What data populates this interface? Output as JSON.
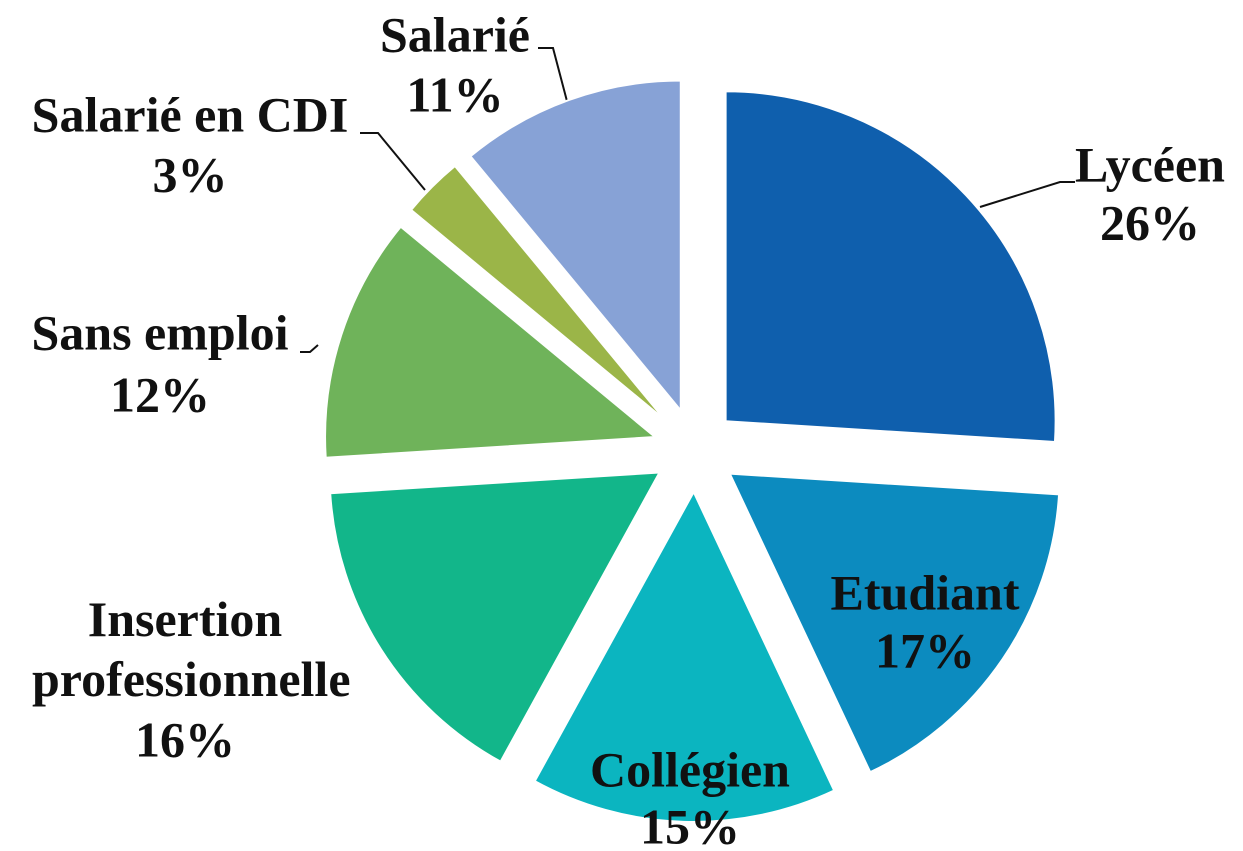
{
  "chart_data": {
    "type": "pie",
    "categories": [
      "Lycéen",
      "Etudiant",
      "Collégien",
      "Insertion professionnelle",
      "Sans emploi",
      "Salarié en CDI",
      "Salarié"
    ],
    "values": [
      26,
      17,
      15,
      16,
      12,
      3,
      11
    ],
    "value_labels": [
      "26%",
      "17%",
      "15%",
      "16%",
      "12%",
      "3%",
      "11%"
    ],
    "colors": [
      "#0f5fad",
      "#0c8bbf",
      "#0bb5c0",
      "#12b68a",
      "#6fb35a",
      "#9bb548",
      "#87a2d6"
    ]
  }
}
